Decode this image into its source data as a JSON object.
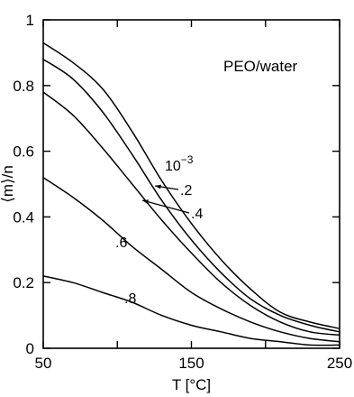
{
  "chart_data": {
    "type": "line",
    "title": "PEO/water",
    "xlabel": "T [°C]",
    "ylabel": "⟨m⟩/n",
    "xlim": [
      50,
      250
    ],
    "ylim": [
      0,
      1
    ],
    "grid": false,
    "xticks": [
      50,
      100,
      150,
      200,
      250
    ],
    "xtick_labels": [
      "50",
      "",
      "150",
      "",
      "250"
    ],
    "yticks": [
      0,
      0.2,
      0.4,
      0.6,
      0.8,
      1.0
    ],
    "ytick_labels": [
      "0",
      "0.2",
      "0.4",
      "0.6",
      "0.8",
      "1"
    ],
    "x": [
      50,
      70,
      90,
      110,
      130,
      150,
      170,
      190,
      210,
      230,
      250
    ],
    "series": [
      {
        "name": "10⁻³",
        "values": [
          0.93,
          0.87,
          0.79,
          0.66,
          0.51,
          0.38,
          0.27,
          0.18,
          0.11,
          0.08,
          0.06
        ]
      },
      {
        "name": ".2",
        "values": [
          0.88,
          0.82,
          0.72,
          0.59,
          0.45,
          0.33,
          0.23,
          0.15,
          0.1,
          0.07,
          0.05
        ]
      },
      {
        "name": ".4",
        "values": [
          0.78,
          0.71,
          0.61,
          0.5,
          0.39,
          0.29,
          0.2,
          0.13,
          0.08,
          0.05,
          0.04
        ]
      },
      {
        "name": ".6",
        "values": [
          0.52,
          0.46,
          0.39,
          0.31,
          0.24,
          0.17,
          0.12,
          0.08,
          0.05,
          0.03,
          0.02
        ]
      },
      {
        "name": ".8",
        "values": [
          0.22,
          0.2,
          0.17,
          0.14,
          0.1,
          0.07,
          0.05,
          0.03,
          0.02,
          0.01,
          0.01
        ]
      }
    ],
    "annotations": [
      {
        "text": "10",
        "sup": "−3",
        "series": 0
      },
      {
        "text": ".2",
        "series": 1
      },
      {
        "text": ".4",
        "series": 2
      },
      {
        "text": ".6",
        "series": 3
      },
      {
        "text": ".8",
        "series": 4
      }
    ]
  }
}
